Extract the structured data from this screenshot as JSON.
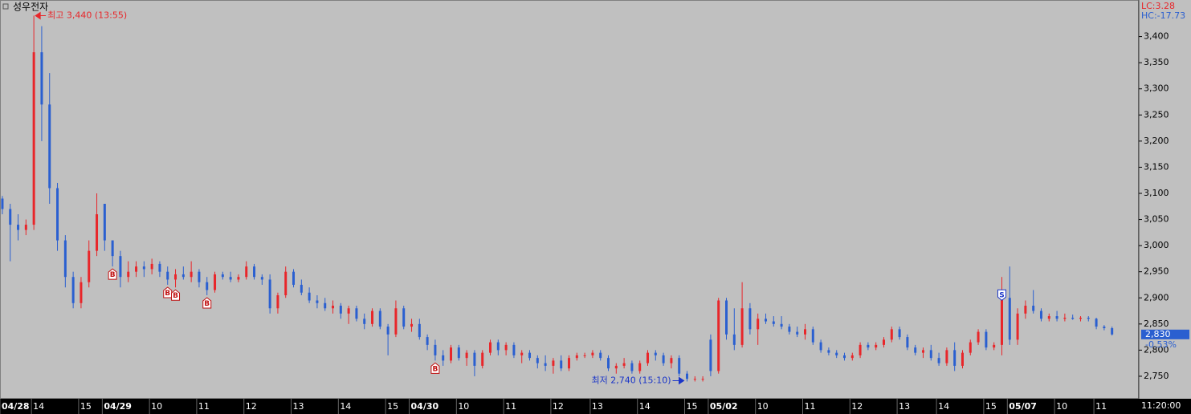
{
  "chart_data": {
    "type": "candlestick",
    "title": "성우전자",
    "up_color": "#e8262a",
    "down_color": "#2a5fd0",
    "xlim": [
      -0.3,
      144.4
    ],
    "ylim": [
      2710,
      3470
    ],
    "xticks": [
      {
        "value": 0,
        "label": "04/28"
      },
      {
        "value": 4,
        "label": "14"
      },
      {
        "value": 10,
        "label": "15"
      },
      {
        "value": 13,
        "label": "04/29"
      },
      {
        "value": 19,
        "label": "10"
      },
      {
        "value": 25,
        "label": "11"
      },
      {
        "value": 31,
        "label": "12"
      },
      {
        "value": 37,
        "label": "13"
      },
      {
        "value": 43,
        "label": "14"
      },
      {
        "value": 49,
        "label": "15"
      },
      {
        "value": 52,
        "label": "04/30"
      },
      {
        "value": 58,
        "label": "10"
      },
      {
        "value": 64,
        "label": "11"
      },
      {
        "value": 70,
        "label": "12"
      },
      {
        "value": 75,
        "label": "13"
      },
      {
        "value": 81,
        "label": "14"
      },
      {
        "value": 87,
        "label": "15"
      },
      {
        "value": 90,
        "label": "05/02"
      },
      {
        "value": 96,
        "label": "10"
      },
      {
        "value": 102,
        "label": "11"
      },
      {
        "value": 108,
        "label": "12"
      },
      {
        "value": 114,
        "label": "13"
      },
      {
        "value": 119,
        "label": "14"
      },
      {
        "value": 125,
        "label": "15"
      },
      {
        "value": 128,
        "label": "05/07"
      },
      {
        "value": 134,
        "label": "10"
      },
      {
        "value": 139,
        "label": "11"
      }
    ],
    "yticks": [
      {
        "value": 2750,
        "label": "2,750"
      },
      {
        "value": 2800,
        "label": "2,800"
      },
      {
        "value": 2850,
        "label": "2,850"
      },
      {
        "value": 2900,
        "label": "2,900"
      },
      {
        "value": 2950,
        "label": "2,950"
      },
      {
        "value": 3000,
        "label": "3,000"
      },
      {
        "value": 3050,
        "label": "3,050"
      },
      {
        "value": 3100,
        "label": "3,100"
      },
      {
        "value": 3150,
        "label": "3,150"
      },
      {
        "value": 3200,
        "label": "3,200"
      },
      {
        "value": 3250,
        "label": "3,250"
      },
      {
        "value": 3300,
        "label": "3,300"
      },
      {
        "value": 3350,
        "label": "3,350"
      },
      {
        "value": 3400,
        "label": "3,400"
      }
    ],
    "open": [
      3090,
      3070,
      3040,
      3030,
      3040,
      3370,
      3270,
      3110,
      3010,
      2940,
      2890,
      2930,
      2990,
      3080,
      3010,
      2980,
      2940,
      2950,
      2960,
      2955,
      2965,
      2950,
      2935,
      2945,
      2940,
      2950,
      2930,
      2915,
      2945,
      2940,
      2935,
      2940,
      2960,
      2940,
      2935,
      2880,
      2905,
      2950,
      2925,
      2910,
      2895,
      2890,
      2880,
      2885,
      2870,
      2880,
      2860,
      2850,
      2875,
      2845,
      2830,
      2880,
      2845,
      2850,
      2825,
      2810,
      2790,
      2780,
      2805,
      2785,
      2795,
      2770,
      2795,
      2815,
      2800,
      2810,
      2790,
      2795,
      2785,
      2775,
      2770,
      2780,
      2765,
      2785,
      2790,
      2790,
      2795,
      2785,
      2765,
      2770,
      2775,
      2760,
      2775,
      2795,
      2790,
      2775,
      2785,
      2755,
      2745,
      2745,
      2820,
      2760,
      2895,
      2830,
      2810,
      2880,
      2840,
      2860,
      2855,
      2850,
      2845,
      2835,
      2830,
      2840,
      2815,
      2800,
      2795,
      2790,
      2785,
      2790,
      2810,
      2805,
      2810,
      2820,
      2840,
      2825,
      2805,
      2795,
      2800,
      2785,
      2775,
      2800,
      2770,
      2795,
      2815,
      2835,
      2805,
      2810,
      2900,
      2820,
      2870,
      2885,
      2875,
      2860,
      2865,
      2860,
      2862,
      2860,
      2862,
      2860,
      2845,
      2842
    ],
    "high": [
      3095,
      3080,
      3060,
      3050,
      3440,
      3420,
      3330,
      3120,
      3020,
      2950,
      2940,
      3010,
      3100,
      3080,
      3010,
      2990,
      2970,
      2970,
      2970,
      2975,
      2970,
      2960,
      2955,
      2960,
      2970,
      2955,
      2940,
      2950,
      2950,
      2950,
      2945,
      2970,
      2965,
      2945,
      2945,
      2910,
      2960,
      2955,
      2935,
      2920,
      2905,
      2900,
      2895,
      2890,
      2885,
      2885,
      2870,
      2880,
      2880,
      2850,
      2895,
      2885,
      2860,
      2860,
      2830,
      2820,
      2800,
      2810,
      2810,
      2800,
      2800,
      2800,
      2820,
      2820,
      2815,
      2815,
      2800,
      2800,
      2790,
      2790,
      2785,
      2790,
      2790,
      2795,
      2795,
      2800,
      2800,
      2790,
      2775,
      2785,
      2780,
      2780,
      2800,
      2800,
      2795,
      2790,
      2790,
      2760,
      2750,
      2750,
      2830,
      2900,
      2900,
      2880,
      2930,
      2890,
      2870,
      2870,
      2865,
      2865,
      2850,
      2845,
      2850,
      2845,
      2820,
      2805,
      2800,
      2795,
      2795,
      2815,
      2815,
      2815,
      2825,
      2845,
      2845,
      2830,
      2810,
      2805,
      2810,
      2795,
      2805,
      2815,
      2800,
      2820,
      2840,
      2840,
      2815,
      2940,
      2960,
      2880,
      2895,
      2915,
      2880,
      2870,
      2875,
      2870,
      2868,
      2865,
      2865,
      2862,
      2848,
      2845
    ],
    "low": [
      3060,
      2970,
      3010,
      3020,
      3030,
      3200,
      3080,
      2990,
      2920,
      2880,
      2880,
      2920,
      2980,
      2990,
      2960,
      2920,
      2930,
      2940,
      2940,
      2945,
      2940,
      2925,
      2920,
      2935,
      2930,
      2920,
      2905,
      2910,
      2935,
      2930,
      2930,
      2935,
      2935,
      2925,
      2870,
      2870,
      2900,
      2920,
      2905,
      2890,
      2880,
      2875,
      2870,
      2860,
      2850,
      2855,
      2840,
      2845,
      2840,
      2790,
      2825,
      2840,
      2835,
      2820,
      2800,
      2780,
      2770,
      2775,
      2780,
      2770,
      2750,
      2765,
      2790,
      2790,
      2790,
      2785,
      2775,
      2780,
      2765,
      2760,
      2755,
      2760,
      2760,
      2780,
      2785,
      2785,
      2780,
      2760,
      2755,
      2765,
      2755,
      2755,
      2770,
      2780,
      2770,
      2765,
      2750,
      2740,
      2740,
      2740,
      2750,
      2755,
      2820,
      2800,
      2805,
      2830,
      2810,
      2850,
      2845,
      2840,
      2830,
      2825,
      2820,
      2810,
      2795,
      2790,
      2785,
      2780,
      2780,
      2785,
      2800,
      2800,
      2805,
      2815,
      2820,
      2800,
      2790,
      2785,
      2780,
      2770,
      2770,
      2760,
      2765,
      2790,
      2810,
      2800,
      2800,
      2790,
      2810,
      2810,
      2860,
      2870,
      2855,
      2855,
      2855,
      2855,
      2858,
      2855,
      2855,
      2840,
      2838,
      2828
    ],
    "close": [
      3070,
      3040,
      3030,
      3040,
      3370,
      3270,
      3110,
      3010,
      2940,
      2890,
      2930,
      2990,
      3060,
      3010,
      2980,
      2940,
      2950,
      2960,
      2955,
      2965,
      2950,
      2935,
      2945,
      2940,
      2950,
      2930,
      2915,
      2945,
      2940,
      2935,
      2940,
      2960,
      2940,
      2935,
      2880,
      2905,
      2950,
      2925,
      2910,
      2895,
      2890,
      2880,
      2885,
      2870,
      2880,
      2860,
      2850,
      2875,
      2845,
      2830,
      2880,
      2845,
      2850,
      2825,
      2810,
      2790,
      2780,
      2805,
      2785,
      2795,
      2770,
      2795,
      2815,
      2800,
      2810,
      2790,
      2795,
      2785,
      2775,
      2770,
      2780,
      2765,
      2785,
      2790,
      2790,
      2795,
      2785,
      2765,
      2770,
      2775,
      2760,
      2775,
      2795,
      2790,
      2775,
      2785,
      2755,
      2745,
      2745,
      2745,
      2760,
      2895,
      2830,
      2810,
      2880,
      2840,
      2860,
      2855,
      2850,
      2845,
      2835,
      2830,
      2840,
      2815,
      2800,
      2795,
      2790,
      2785,
      2790,
      2810,
      2805,
      2810,
      2820,
      2840,
      2825,
      2805,
      2795,
      2800,
      2785,
      2775,
      2800,
      2770,
      2795,
      2815,
      2835,
      2805,
      2810,
      2900,
      2820,
      2870,
      2885,
      2875,
      2860,
      2865,
      2860,
      2862,
      2860,
      2862,
      2860,
      2845,
      2842,
      2830
    ],
    "signals": [
      {
        "index": 14,
        "label": "B"
      },
      {
        "index": 21,
        "label": "B"
      },
      {
        "index": 22,
        "label": "B"
      },
      {
        "index": 26,
        "label": "B"
      },
      {
        "index": 55,
        "label": "B"
      },
      {
        "index": 127,
        "label": "S"
      }
    ],
    "annotations": [
      {
        "text": "최고 3,440 (13:55)",
        "index": 4,
        "value": 3440,
        "color": "#e8262a",
        "side": "right"
      },
      {
        "text": "최저 2,740 (15:10)",
        "index": 87,
        "value": 2740,
        "color": "#1a35c8",
        "side": "left"
      }
    ],
    "indicators": [
      {
        "text": "LC:3.28",
        "color": "#e8262a"
      },
      {
        "text": "HC:-17.73",
        "color": "#2a5fd0"
      }
    ],
    "last_price": {
      "value": 2830,
      "label": "2,830"
    },
    "change": "-0.53%",
    "time": "11:20:00"
  }
}
